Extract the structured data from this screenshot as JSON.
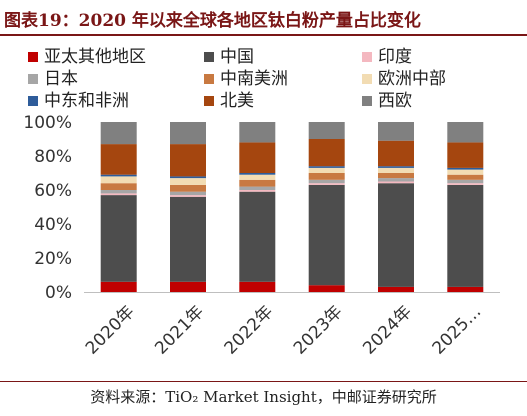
{
  "title": "图表19：2020 年以来全球各地区钛白粉产量占比变化",
  "source": "资料来源：TiO₂ Market Insight，中邮证券研究所",
  "chart_data": {
    "type": "bar",
    "stacked": true,
    "categories": [
      "2020年",
      "2021年",
      "2022年",
      "2023年",
      "2024年",
      "2025…"
    ],
    "ylim": [
      0,
      100
    ],
    "yticks": [
      "0%",
      "20%",
      "40%",
      "60%",
      "80%",
      "100%"
    ],
    "legend_position": "top",
    "series": [
      {
        "name": "亚太其他地区",
        "color": "#c00000",
        "values": [
          6,
          6,
          6,
          4,
          3,
          3
        ]
      },
      {
        "name": "中国",
        "color": "#4d4d4d",
        "values": [
          51,
          50,
          53,
          59,
          61,
          60
        ]
      },
      {
        "name": "印度",
        "color": "#f4b8c0",
        "values": [
          1,
          1,
          1,
          1,
          1,
          1
        ]
      },
      {
        "name": "日本",
        "color": "#a6a6a6",
        "values": [
          2,
          2,
          2,
          2,
          2,
          2
        ]
      },
      {
        "name": "中南美洲",
        "color": "#c87941",
        "values": [
          4,
          4,
          4,
          4,
          3,
          3
        ]
      },
      {
        "name": "欧洲中部",
        "color": "#f2dcb3",
        "values": [
          4,
          4,
          3,
          3,
          3,
          3
        ]
      },
      {
        "name": "中东和非洲",
        "color": "#2e5c9a",
        "values": [
          1,
          1,
          1,
          1,
          1,
          1
        ]
      },
      {
        "name": "北美",
        "color": "#a5460f",
        "values": [
          18,
          19,
          18,
          16,
          15,
          15
        ]
      },
      {
        "name": "西欧",
        "color": "#808080",
        "values": [
          13,
          13,
          12,
          10,
          11,
          12
        ]
      }
    ]
  }
}
